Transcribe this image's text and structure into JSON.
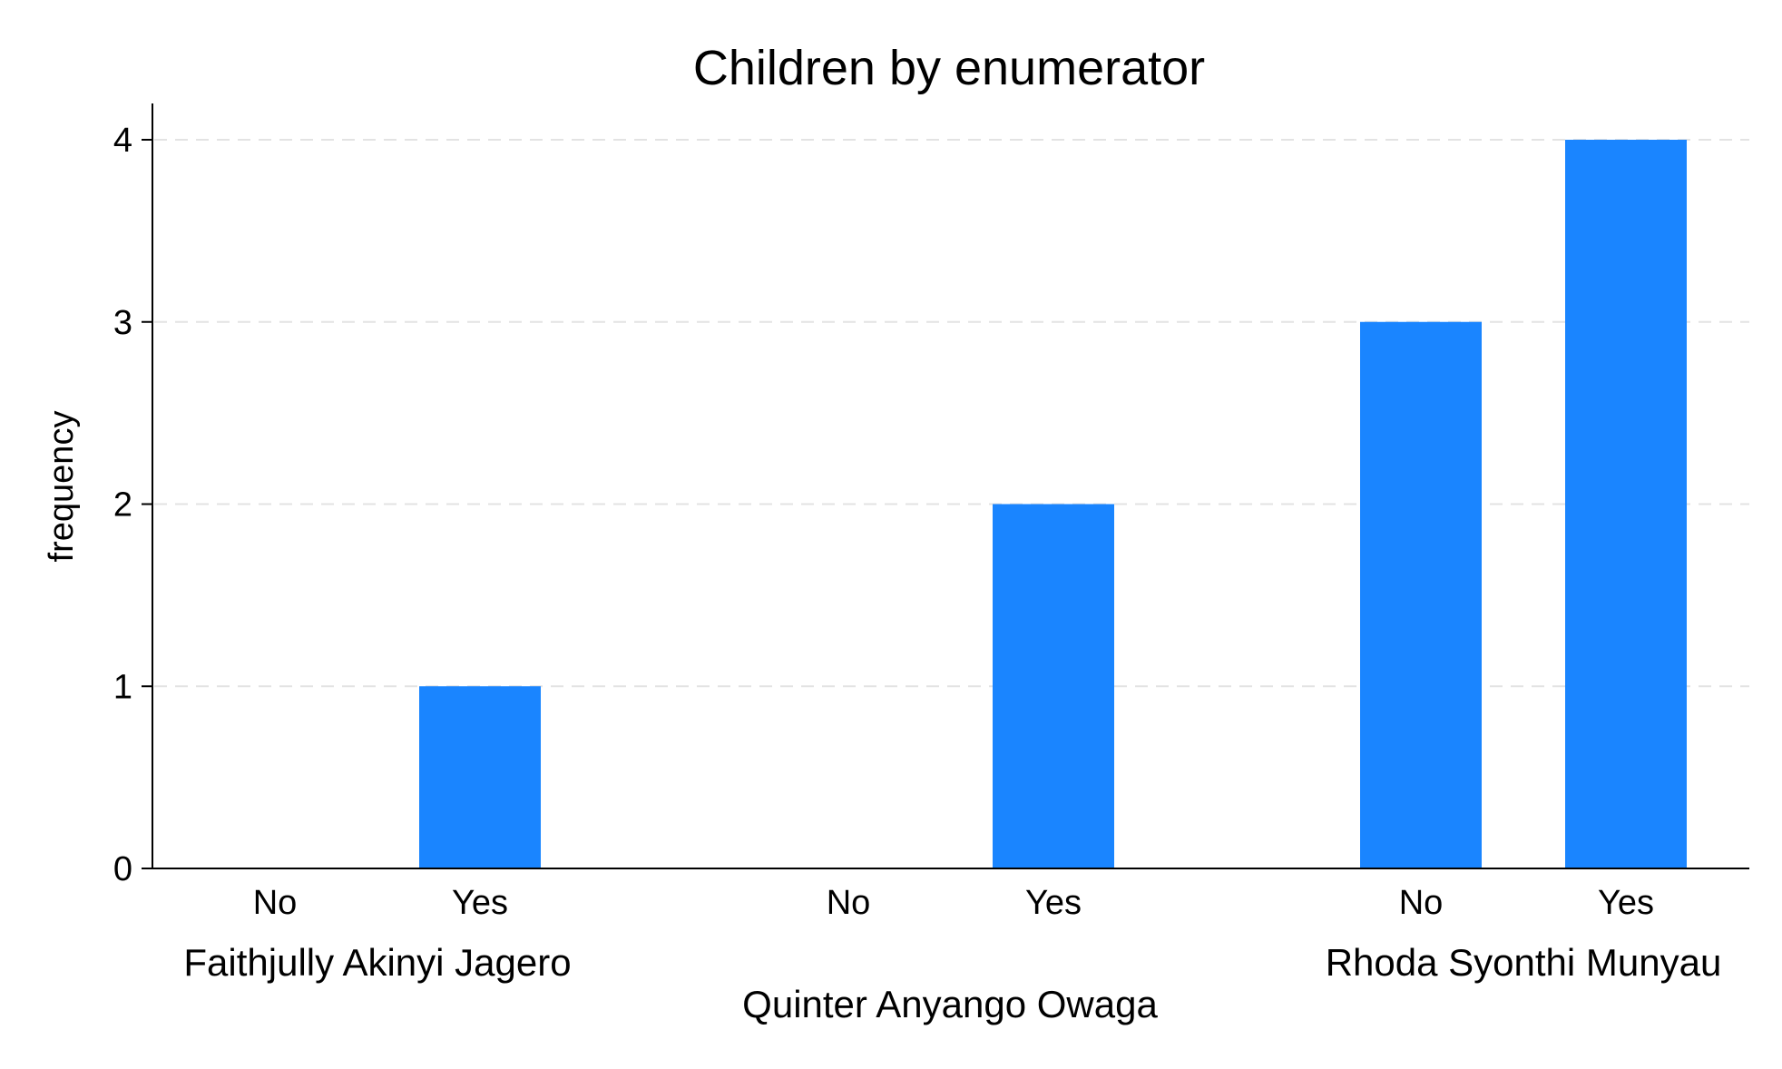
{
  "chart_data": {
    "type": "bar",
    "title": "Children by enumerator",
    "xlabel": "",
    "ylabel": "frequency",
    "ylim": [
      0,
      4
    ],
    "yticks": [
      0,
      1,
      2,
      3,
      4
    ],
    "grid": true,
    "bar_color": "#1a85ff",
    "groups": [
      {
        "name": "Faithjully Akinyi Jagero",
        "categories": [
          "No",
          "Yes"
        ],
        "values": [
          0,
          1
        ]
      },
      {
        "name": "Quinter Anyango Owaga",
        "categories": [
          "No",
          "Yes"
        ],
        "values": [
          0,
          2
        ]
      },
      {
        "name": "Rhoda Syonthi Munyau",
        "categories": [
          "No",
          "Yes"
        ],
        "values": [
          3,
          4
        ]
      }
    ]
  }
}
